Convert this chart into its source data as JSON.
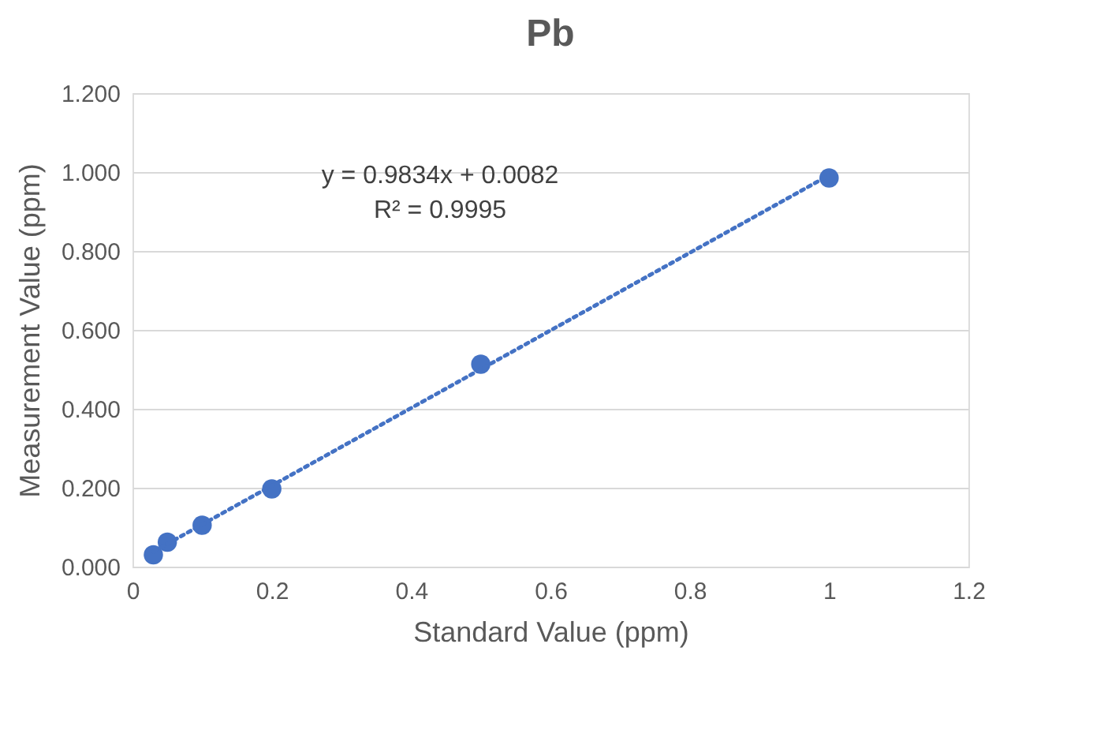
{
  "chart_data": {
    "type": "scatter",
    "title": "Pb",
    "xlabel": "Standard Value (ppm)",
    "ylabel": "Measurement Value (ppm)",
    "series": [
      {
        "color": "#4472c4",
        "x": [
          0.03,
          0.05,
          0.1,
          0.2,
          0.5,
          1.0
        ],
        "values": [
          0.03,
          0.062,
          0.105,
          0.197,
          0.513,
          0.985
        ],
        "marker": "circle"
      },
      {
        "type": "line",
        "color": "#4472c4",
        "x": [
          0.03,
          1.0
        ],
        "values": [
          0.038,
          0.992
        ],
        "line_style": "dotted"
      }
    ],
    "xlim": [
      0,
      1.2
    ],
    "xticks": [
      0,
      0.2,
      0.4,
      0.6,
      0.8,
      1,
      1.2
    ],
    "ylim": [
      0,
      1.2
    ],
    "yticks": [
      {
        "value": 0,
        "label": "0.000"
      },
      {
        "value": 0.2,
        "label": "0.200"
      },
      {
        "value": 0.4,
        "label": "0.400"
      },
      {
        "value": 0.6,
        "label": "0.600"
      },
      {
        "value": 0.8,
        "label": "0.800"
      },
      {
        "value": 1.0,
        "label": "1.000"
      },
      {
        "value": 1.2,
        "label": "1.200"
      }
    ],
    "annotations": [
      "y = 0.9834x + 0.0082",
      "R² = 0.9995"
    ],
    "grid": "y"
  }
}
